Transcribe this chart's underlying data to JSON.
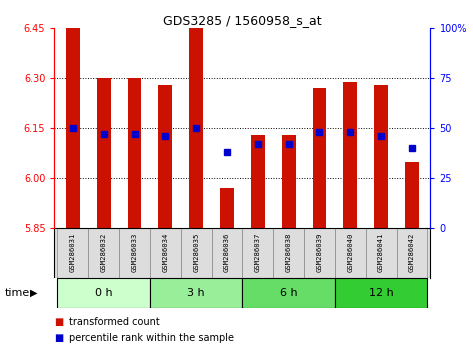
{
  "title": "GDS3285 / 1560958_s_at",
  "samples": [
    "GSM286031",
    "GSM286032",
    "GSM286033",
    "GSM286034",
    "GSM286035",
    "GSM286036",
    "GSM286037",
    "GSM286038",
    "GSM286039",
    "GSM286040",
    "GSM286041",
    "GSM286042"
  ],
  "bar_values": [
    6.45,
    6.3,
    6.3,
    6.28,
    6.45,
    5.97,
    6.13,
    6.13,
    6.27,
    6.29,
    6.28,
    6.05
  ],
  "bar_base": 5.85,
  "percentile_values": [
    50,
    47,
    47,
    46,
    50,
    38,
    42,
    42,
    48,
    48,
    46,
    40
  ],
  "bar_color": "#cc1100",
  "pct_color": "#0000cc",
  "ylim_left": [
    5.85,
    6.45
  ],
  "ylim_right": [
    0,
    100
  ],
  "yticks_left": [
    5.85,
    6.0,
    6.15,
    6.3,
    6.45
  ],
  "yticks_right": [
    0,
    25,
    50,
    75,
    100
  ],
  "ytick_right_labels": [
    "0",
    "25",
    "50",
    "75",
    "100%"
  ],
  "grid_values": [
    6.0,
    6.15,
    6.3
  ],
  "groups": [
    {
      "label": "0 h",
      "start": 0,
      "end": 3,
      "color": "#ccffcc"
    },
    {
      "label": "3 h",
      "start": 3,
      "end": 6,
      "color": "#99ee99"
    },
    {
      "label": "6 h",
      "start": 6,
      "end": 9,
      "color": "#66dd66"
    },
    {
      "label": "12 h",
      "start": 9,
      "end": 12,
      "color": "#33cc33"
    }
  ],
  "time_label": "time",
  "legend1": "transformed count",
  "legend2": "percentile rank within the sample",
  "bar_width": 0.45,
  "pct_marker_size": 5
}
